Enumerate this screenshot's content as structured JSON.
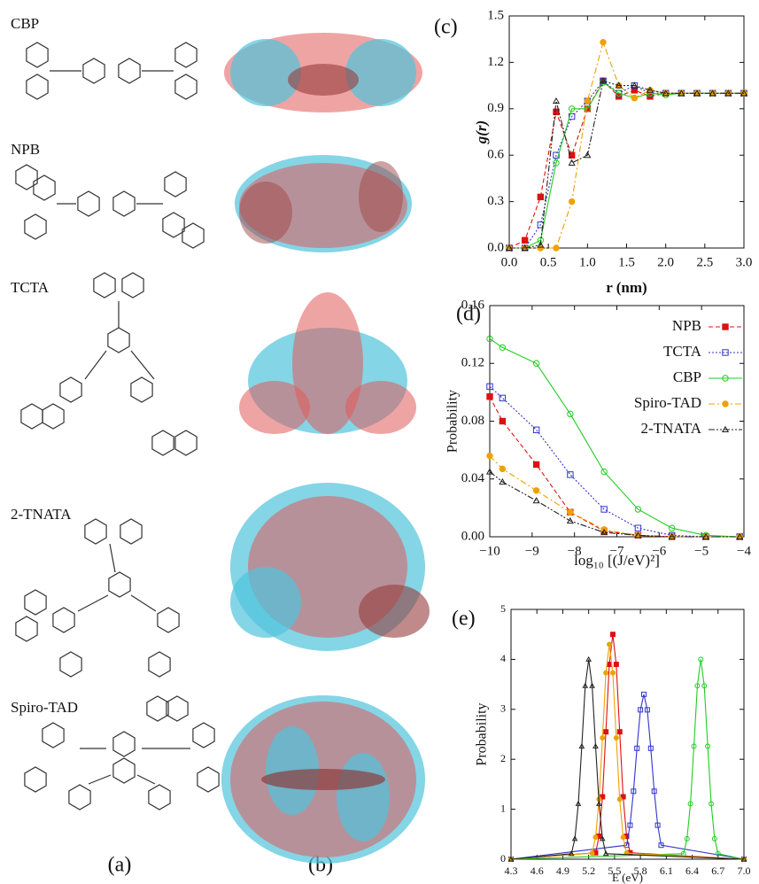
{
  "panel_labels": [
    "(a)",
    "(b)"
  ],
  "molecules": [
    {
      "name": "CBP"
    },
    {
      "name": "NPB"
    },
    {
      "name": "TCTA"
    },
    {
      "name": "2-TNATA"
    },
    {
      "name": "Spiro-TAD"
    }
  ],
  "chart_data": [
    {
      "type": "line",
      "panel_label": "(c)",
      "y_label": "g(r)",
      "x_label": "r (nm)",
      "xlim": [
        0,
        3
      ],
      "ylim": [
        0,
        1.5
      ],
      "xticks": [
        {
          "value": 0,
          "label": "0.0"
        },
        0.5,
        {
          "value": 1,
          "label": "1.0"
        },
        1.5,
        {
          "value": 2,
          "label": "2.0"
        },
        2.5,
        {
          "value": 3,
          "label": "3.0"
        }
      ],
      "yticks": [
        {
          "value": 0,
          "label": "0.0"
        },
        0.3,
        0.6,
        0.9,
        1.2,
        1.5
      ],
      "x": [
        0,
        0.2,
        0.4,
        0.6,
        0.8,
        1.0,
        1.2,
        1.4,
        1.6,
        1.8,
        2.0,
        2.2,
        2.4,
        2.6,
        2.8,
        3.0
      ],
      "series": [
        {
          "color": "#dd1111",
          "line_style": "dashed",
          "marker": "square-filled",
          "values": [
            0,
            0.05,
            0.33,
            0.88,
            0.6,
            0.9,
            1.08,
            0.98,
            1.02,
            0.98,
            1.0,
            1.0,
            1.0,
            1.0,
            1.0,
            1.0
          ]
        },
        {
          "color": "#3333cc",
          "line_style": "dotted",
          "marker": "square-open",
          "values": [
            0,
            0,
            0.15,
            0.6,
            0.85,
            0.95,
            1.08,
            1.0,
            1.05,
            1.0,
            1.0,
            1.0,
            1.0,
            1.0,
            1.0,
            1.0
          ]
        },
        {
          "color": "#22cc22",
          "line_style": "solid",
          "marker": "circle-open",
          "values": [
            0,
            0,
            0.05,
            0.55,
            0.9,
            0.9,
            1.07,
            1.0,
            0.97,
            1.0,
            0.99,
            1.0,
            1.0,
            1.0,
            1.0,
            1.0
          ]
        },
        {
          "color": "#f0a000",
          "line_style": "dashdot",
          "marker": "circle-filled",
          "values": [
            0,
            0,
            0,
            0,
            0.3,
            0.95,
            1.33,
            1.05,
            0.97,
            1.02,
            1.0,
            1.0,
            1.0,
            1.0,
            1.0,
            1.0
          ]
        },
        {
          "color": "#222222",
          "line_style": "dashdotdot",
          "marker": "triangle-open",
          "values": [
            0,
            0,
            0.02,
            0.95,
            0.55,
            0.6,
            1.08,
            1.05,
            1.05,
            1.02,
            1.0,
            1.0,
            1.0,
            1.0,
            1.0,
            1.0
          ]
        }
      ]
    },
    {
      "type": "line",
      "panel_label": "(d)",
      "y_label": "Probability",
      "x_label": "log₁₀ [(J/eV)²]",
      "xlim": [
        -10,
        -4
      ],
      "ylim": [
        0,
        0.16
      ],
      "legend": "upper right",
      "xticks": [
        {
          "value": -10,
          "label": "−10"
        },
        {
          "value": -9,
          "label": "−9"
        },
        {
          "value": -8,
          "label": "−8"
        },
        {
          "value": -7,
          "label": "−7"
        },
        {
          "value": -6,
          "label": "−6"
        },
        {
          "value": -5,
          "label": "−5"
        },
        {
          "value": -4,
          "label": "−4"
        }
      ],
      "yticks": [
        {
          "value": 0,
          "label": "0.00"
        },
        0.04,
        0.08,
        0.12,
        0.16
      ],
      "x": [
        -10,
        -9.7,
        -8.9,
        -8.1,
        -7.3,
        -6.5,
        -5.7,
        -4.9,
        -4.1
      ],
      "series": [
        {
          "name": "NPB",
          "color": "#dd1111",
          "line_style": "dashed",
          "marker": "square-filled",
          "values": [
            0.097,
            0.08,
            0.05,
            0.017,
            0.004,
            0.001,
            0,
            0,
            0
          ]
        },
        {
          "name": "TCTA",
          "color": "#3333cc",
          "line_style": "dotted",
          "marker": "square-open",
          "values": [
            0.104,
            0.096,
            0.074,
            0.043,
            0.019,
            0.006,
            0.001,
            0,
            0
          ]
        },
        {
          "name": "CBP",
          "color": "#22cc22",
          "line_style": "solid",
          "marker": "circle-open",
          "values": [
            0.137,
            0.131,
            0.12,
            0.085,
            0.045,
            0.019,
            0.006,
            0.001,
            0
          ]
        },
        {
          "name": "Spiro-TAD",
          "color": "#f0a000",
          "line_style": "dashdot",
          "marker": "circle-filled",
          "values": [
            0.056,
            0.047,
            0.032,
            0.017,
            0.005,
            0.001,
            0,
            0,
            0
          ]
        },
        {
          "name": "2-TNATA",
          "color": "#222222",
          "line_style": "dashdotdot",
          "marker": "triangle-open",
          "values": [
            0.045,
            0.038,
            0.025,
            0.011,
            0.003,
            0.001,
            0,
            0,
            0
          ]
        }
      ]
    },
    {
      "type": "line",
      "panel_label": "(e)",
      "y_label": "Probability",
      "x_label": "E (eV)",
      "xlim": [
        4.3,
        7.0
      ],
      "ylim": [
        0,
        5
      ],
      "xticks": [
        4.3,
        4.6,
        4.9,
        5.2,
        5.5,
        5.8,
        6.1,
        6.4,
        6.7,
        {
          "value": 7,
          "label": "7.0"
        }
      ],
      "yticks": [
        0,
        1,
        2,
        3,
        4,
        5
      ],
      "series": [
        {
          "color": "#dd1111",
          "line_style": "solid",
          "marker": "square-filled",
          "x": [
            4.3,
            5.28,
            5.32,
            5.36,
            5.4,
            5.44,
            5.48,
            5.52,
            5.56,
            5.6,
            5.64,
            5.68,
            7.0
          ],
          "values": [
            0,
            0.13,
            0.46,
            1.25,
            2.55,
            3.9,
            4.5,
            3.9,
            2.55,
            1.25,
            0.46,
            0.13,
            0
          ]
        },
        {
          "color": "#3333cc",
          "line_style": "solid",
          "marker": "square-open",
          "x": [
            4.3,
            5.64,
            5.68,
            5.72,
            5.76,
            5.8,
            5.84,
            5.88,
            5.92,
            5.96,
            6.0,
            6.04,
            7.0
          ],
          "values": [
            0,
            0.28,
            0.68,
            1.36,
            2.22,
            2.99,
            3.3,
            2.99,
            2.22,
            1.36,
            0.68,
            0.28,
            0
          ]
        },
        {
          "color": "#22cc22",
          "line_style": "solid",
          "marker": "circle-open",
          "x": [
            4.3,
            6.3,
            6.34,
            6.38,
            6.42,
            6.46,
            6.5,
            6.54,
            6.58,
            6.62,
            6.66,
            6.7,
            7.0
          ],
          "values": [
            0,
            0.11,
            0.41,
            1.11,
            2.26,
            3.47,
            4.0,
            3.47,
            2.26,
            1.11,
            0.41,
            0.11,
            0
          ]
        },
        {
          "color": "#f0a000",
          "line_style": "solid",
          "marker": "circle-filled",
          "x": [
            4.3,
            5.24,
            5.28,
            5.32,
            5.36,
            5.4,
            5.44,
            5.48,
            5.52,
            5.56,
            5.6,
            5.64,
            7.0
          ],
          "values": [
            0,
            0.12,
            0.44,
            1.2,
            2.43,
            3.73,
            4.3,
            3.73,
            2.43,
            1.2,
            0.44,
            0.12,
            0
          ]
        },
        {
          "color": "#222222",
          "line_style": "solid",
          "marker": "triangle-open",
          "x": [
            4.3,
            5.0,
            5.04,
            5.08,
            5.12,
            5.16,
            5.2,
            5.24,
            5.28,
            5.32,
            5.36,
            5.4,
            7.0
          ],
          "values": [
            0,
            0.11,
            0.41,
            1.11,
            2.26,
            3.47,
            4.0,
            3.47,
            2.26,
            1.11,
            0.41,
            0.11,
            0
          ]
        }
      ]
    }
  ]
}
